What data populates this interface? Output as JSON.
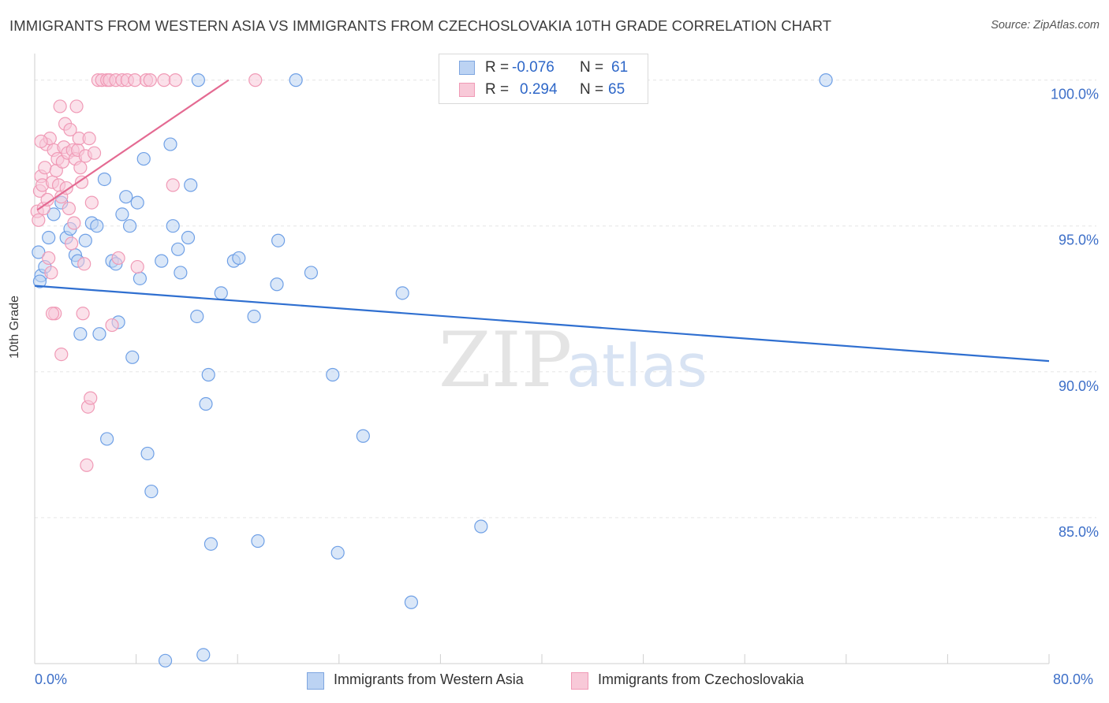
{
  "title": "IMMIGRANTS FROM WESTERN ASIA VS IMMIGRANTS FROM CZECHOSLOVAKIA 10TH GRADE CORRELATION CHART",
  "source": "Source: ZipAtlas.com",
  "watermark": {
    "zip": "ZIP",
    "atlas": "atlas"
  },
  "stats": [
    {
      "r_label": "R =",
      "r_value": "-0.076",
      "n_label": "N =",
      "n_value": "61",
      "color": "#7ea6e0",
      "fill": "#bcd3f3"
    },
    {
      "r_label": "R =",
      "r_value": "0.294",
      "n_label": "N =",
      "n_value": "65",
      "color": "#f09ab6",
      "fill": "#f8c9d8"
    }
  ],
  "legend": [
    {
      "label": "Immigrants from Western Asia",
      "color": "#7ea6e0",
      "fill": "#bcd3f3"
    },
    {
      "label": "Immigrants from Czechoslovakia",
      "color": "#f09ab6",
      "fill": "#f8c9d8"
    }
  ],
  "axes": {
    "x_min_label": "0.0%",
    "x_max_label": "80.0%",
    "y_title": "10th Grade"
  },
  "chart_data": {
    "type": "scatter",
    "title": "IMMIGRANTS FROM WESTERN ASIA VS IMMIGRANTS FROM CZECHOSLOVAKIA 10TH GRADE CORRELATION CHART",
    "xlabel": "",
    "ylabel": "10th Grade",
    "xlim": [
      0,
      80
    ],
    "ylim": [
      80.0,
      100.8
    ],
    "y_ticks": [
      {
        "value": 100.0,
        "label": "100.0%"
      },
      {
        "value": 95.0,
        "label": "95.0%"
      },
      {
        "value": 90.0,
        "label": "90.0%"
      },
      {
        "value": 85.0,
        "label": "85.0%"
      }
    ],
    "grid": true,
    "legend_position": "bottom-center",
    "series": [
      {
        "name": "Immigrants from Western Asia",
        "color": "#6fa0e6",
        "fill": "#bcd3f3",
        "trend": {
          "x": [
            0,
            80
          ],
          "y": [
            92.95,
            90.37
          ]
        },
        "points": [
          [
            0.3,
            94.1
          ],
          [
            0.5,
            93.3
          ],
          [
            0.8,
            93.6
          ],
          [
            1.1,
            94.6
          ],
          [
            1.5,
            95.4
          ],
          [
            2.1,
            95.8
          ],
          [
            2.5,
            94.6
          ],
          [
            2.8,
            94.9
          ],
          [
            3.2,
            94.0
          ],
          [
            3.4,
            93.8
          ],
          [
            3.6,
            91.3
          ],
          [
            4.0,
            94.5
          ],
          [
            4.5,
            95.1
          ],
          [
            4.9,
            95.0
          ],
          [
            5.1,
            91.3
          ],
          [
            5.5,
            96.6
          ],
          [
            5.7,
            87.7
          ],
          [
            6.1,
            93.8
          ],
          [
            6.4,
            93.7
          ],
          [
            6.6,
            91.7
          ],
          [
            6.9,
            95.4
          ],
          [
            7.2,
            96.0
          ],
          [
            7.5,
            95.0
          ],
          [
            7.7,
            90.5
          ],
          [
            8.1,
            95.8
          ],
          [
            8.3,
            93.2
          ],
          [
            8.6,
            97.3
          ],
          [
            8.9,
            87.2
          ],
          [
            9.2,
            85.9
          ],
          [
            10.0,
            93.8
          ],
          [
            10.3,
            80.1
          ],
          [
            10.7,
            97.8
          ],
          [
            10.9,
            95.0
          ],
          [
            11.3,
            94.2
          ],
          [
            11.5,
            93.4
          ],
          [
            12.1,
            94.6
          ],
          [
            12.3,
            96.4
          ],
          [
            12.8,
            91.9
          ],
          [
            12.9,
            100.0
          ],
          [
            13.3,
            80.3
          ],
          [
            13.5,
            88.9
          ],
          [
            13.7,
            89.9
          ],
          [
            13.9,
            84.1
          ],
          [
            14.7,
            92.7
          ],
          [
            15.7,
            93.8
          ],
          [
            16.1,
            93.9
          ],
          [
            17.3,
            91.9
          ],
          [
            17.6,
            84.2
          ],
          [
            19.1,
            93.0
          ],
          [
            19.2,
            94.5
          ],
          [
            20.6,
            100.0
          ],
          [
            21.8,
            93.4
          ],
          [
            23.5,
            89.9
          ],
          [
            23.9,
            83.8
          ],
          [
            25.9,
            87.8
          ],
          [
            29.0,
            92.7
          ],
          [
            29.7,
            82.1
          ],
          [
            35.2,
            84.7
          ],
          [
            42.3,
            100.0
          ],
          [
            62.4,
            100.0
          ],
          [
            0.4,
            93.1
          ]
        ]
      },
      {
        "name": "Immigrants from Czechoslovakia",
        "color": "#f09ab6",
        "fill": "#f8c9d8",
        "trend": {
          "x": [
            0.2,
            15.3
          ],
          "y": [
            95.55,
            100.0
          ]
        },
        "points": [
          [
            0.2,
            95.5
          ],
          [
            0.3,
            95.2
          ],
          [
            0.4,
            96.2
          ],
          [
            0.5,
            96.7
          ],
          [
            0.6,
            96.4
          ],
          [
            0.7,
            95.6
          ],
          [
            0.8,
            97.0
          ],
          [
            0.9,
            97.8
          ],
          [
            1.0,
            95.9
          ],
          [
            1.1,
            93.9
          ],
          [
            1.2,
            98.0
          ],
          [
            1.3,
            93.4
          ],
          [
            1.4,
            96.5
          ],
          [
            1.5,
            97.6
          ],
          [
            1.6,
            92.0
          ],
          [
            1.7,
            96.9
          ],
          [
            1.8,
            97.3
          ],
          [
            1.9,
            96.4
          ],
          [
            2.0,
            99.1
          ],
          [
            2.1,
            96.0
          ],
          [
            2.2,
            97.2
          ],
          [
            2.3,
            97.7
          ],
          [
            2.4,
            98.5
          ],
          [
            2.5,
            96.3
          ],
          [
            2.6,
            97.5
          ],
          [
            2.7,
            95.6
          ],
          [
            2.8,
            98.3
          ],
          [
            2.9,
            94.4
          ],
          [
            3.0,
            97.6
          ],
          [
            3.1,
            95.1
          ],
          [
            3.2,
            97.3
          ],
          [
            3.3,
            99.1
          ],
          [
            3.4,
            97.6
          ],
          [
            3.5,
            98.0
          ],
          [
            3.6,
            97.0
          ],
          [
            3.7,
            96.5
          ],
          [
            3.8,
            92.0
          ],
          [
            3.9,
            93.7
          ],
          [
            4.0,
            97.4
          ],
          [
            4.1,
            86.8
          ],
          [
            4.2,
            88.8
          ],
          [
            4.3,
            98.0
          ],
          [
            4.4,
            89.1
          ],
          [
            4.5,
            95.8
          ],
          [
            4.7,
            97.5
          ],
          [
            5.0,
            100.0
          ],
          [
            5.3,
            100.0
          ],
          [
            5.7,
            100.0
          ],
          [
            5.9,
            100.0
          ],
          [
            6.1,
            91.6
          ],
          [
            6.4,
            100.0
          ],
          [
            6.6,
            93.9
          ],
          [
            6.9,
            100.0
          ],
          [
            7.3,
            100.0
          ],
          [
            7.9,
            100.0
          ],
          [
            8.1,
            93.6
          ],
          [
            8.8,
            100.0
          ],
          [
            9.1,
            100.0
          ],
          [
            10.2,
            100.0
          ],
          [
            10.9,
            96.4
          ],
          [
            11.1,
            100.0
          ],
          [
            17.4,
            100.0
          ],
          [
            2.1,
            90.6
          ],
          [
            1.4,
            92.0
          ],
          [
            0.5,
            97.9
          ]
        ]
      }
    ]
  }
}
